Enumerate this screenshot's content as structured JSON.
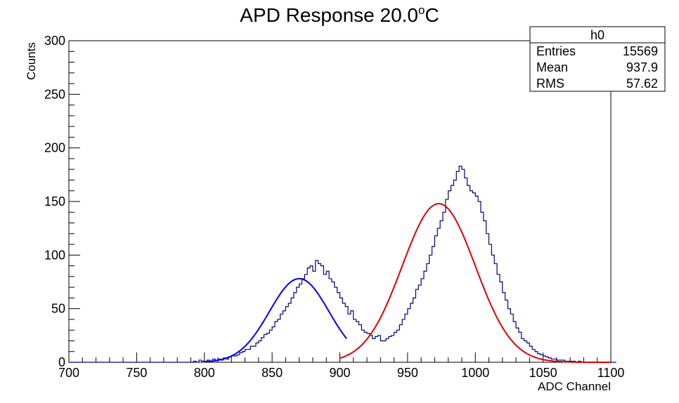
{
  "chart_data": {
    "type": "histogram",
    "title": {
      "text": "APD Response 20.0",
      "sup": "o",
      "suffix": "C"
    },
    "xlabel": "ADC Channel",
    "ylabel": "Counts",
    "xlim": [
      700,
      1100
    ],
    "ylim": [
      0,
      300
    ],
    "x_ticks": [
      700,
      750,
      800,
      850,
      900,
      950,
      1000,
      1050,
      1100
    ],
    "x_tick_labels": [
      "700",
      "750",
      "800",
      "850",
      "900",
      "950",
      "1000",
      "1050",
      "1100"
    ],
    "y_ticks": [
      0,
      50,
      100,
      150,
      200,
      250,
      300
    ],
    "y_tick_labels": [
      "0",
      "50",
      "100",
      "150",
      "200",
      "250",
      "300"
    ],
    "stats_box": {
      "name": "h0",
      "rows": [
        {
          "label": "Entries",
          "value": "15569"
        },
        {
          "label": "Mean",
          "value": "937.9"
        },
        {
          "label": "RMS",
          "value": "57.62"
        }
      ]
    },
    "histogram": {
      "bin_start": 700,
      "bin_width": 2,
      "color": "#000080",
      "counts": [
        0,
        0,
        0,
        0,
        0,
        0,
        0,
        0,
        0,
        0,
        0,
        0,
        0,
        0,
        0,
        0,
        0,
        0,
        0,
        0,
        0,
        0,
        0,
        0,
        0,
        0,
        0,
        0,
        0,
        0,
        0,
        0,
        0,
        0,
        0,
        0,
        0,
        0,
        0,
        0,
        0,
        0,
        0,
        0,
        0,
        0,
        1,
        0,
        2,
        1,
        1,
        2,
        1,
        3,
        2,
        3,
        2,
        4,
        3,
        5,
        6,
        6,
        7,
        9,
        10,
        12,
        12,
        15,
        15,
        18,
        20,
        23,
        26,
        27,
        30,
        33,
        38,
        40,
        45,
        48,
        52,
        55,
        60,
        65,
        70,
        73,
        78,
        82,
        88,
        90,
        85,
        95,
        92,
        90,
        82,
        85,
        78,
        75,
        70,
        65,
        60,
        55,
        52,
        45,
        48,
        40,
        38,
        35,
        30,
        28,
        27,
        25,
        22,
        24,
        25,
        20,
        20,
        22,
        24,
        25,
        28,
        30,
        35,
        40,
        45,
        50,
        55,
        60,
        68,
        72,
        78,
        85,
        92,
        100,
        108,
        118,
        125,
        132,
        140,
        152,
        160,
        165,
        170,
        178,
        183,
        180,
        172,
        165,
        160,
        158,
        155,
        150,
        140,
        132,
        120,
        110,
        100,
        92,
        82,
        75,
        65,
        58,
        50,
        45,
        38,
        32,
        28,
        22,
        20,
        18,
        15,
        12,
        10,
        8,
        7,
        6,
        5,
        4,
        3,
        3,
        2,
        2,
        2,
        1,
        1,
        1,
        1,
        0,
        1,
        0,
        0,
        0,
        0,
        0,
        0,
        0,
        0,
        0,
        0,
        0,
        0,
        0
      ]
    },
    "fits": [
      {
        "type": "gaussian",
        "color": "#0000ee",
        "range": [
          800,
          905
        ],
        "amplitude": 78,
        "mean": 870,
        "sigma": 22
      },
      {
        "type": "gaussian",
        "color": "#dd0000",
        "range": [
          900,
          1100
        ],
        "amplitude": 148,
        "mean": 973,
        "sigma": 27
      }
    ]
  }
}
